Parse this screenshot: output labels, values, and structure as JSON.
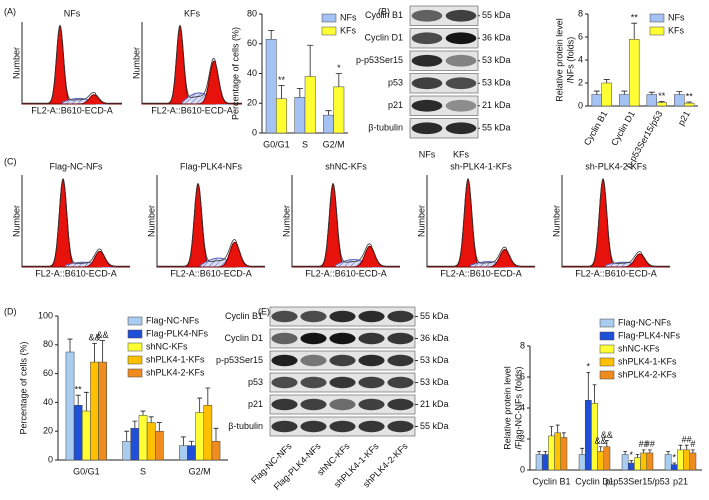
{
  "panel_labels": [
    "(A)",
    "(B)",
    "(C)",
    "(D)",
    "(E)"
  ],
  "histograms": {
    "titles": [
      "NFs",
      "KFs",
      "Flag-NC-NFs",
      "Flag-PLK4-NFs",
      "shNC-KFs",
      "sh-PLK4-1-KFs",
      "sh-PLK4-2-KFs"
    ],
    "x_label": "FL2-A::B610-ECD-A",
    "y_label": "Number"
  },
  "blots": [
    {
      "rows": [
        "Cyclin B1",
        "Cyclin D1",
        "p-p53Ser15",
        "p53",
        "p21",
        "β-tubulin"
      ],
      "sizes": [
        "55 kDa",
        "36 kDa",
        "53 kDa",
        "53 kDa",
        "21 kDa",
        "55 kDa"
      ],
      "lanes": [
        "NFs",
        "KFs"
      ]
    },
    {
      "rows": [
        "Cyclin B1",
        "Cyclin D1",
        "p-p53Ser15",
        "p53",
        "p21",
        "β-tubulin"
      ],
      "sizes": [
        "55 kDa",
        "36 kDa",
        "53 kDa",
        "53 kDa",
        "21 kDa",
        "55 kDa"
      ],
      "lanes": [
        "Flag-NC-NFs",
        "Flag-PLK4-NFs",
        "shNC-KFs",
        "shPLK4-1-KFs",
        "shPLK4-2-KFs"
      ]
    }
  ],
  "chart_data": [
    {
      "type": "bar",
      "y_label": [
        "Percentage of cells (%)"
      ],
      "categories": [
        "G0/G1",
        "S",
        "G2/M"
      ],
      "series": [
        {
          "name": "NFs",
          "color": "#a4c2f4",
          "values": [
            63,
            24,
            12
          ],
          "errors": [
            6,
            6,
            3
          ]
        },
        {
          "name": "KFs",
          "color": "#ffff33",
          "values": [
            23,
            38,
            31
          ],
          "errors": [
            9,
            21,
            9
          ],
          "significance": [
            "**",
            null,
            "*"
          ]
        }
      ],
      "ylim": [
        0,
        80
      ],
      "yticks": [
        0,
        20,
        40,
        60,
        80
      ],
      "legend": "upper right"
    },
    {
      "type": "bar",
      "y_label": [
        "Relative protein level",
        "/NFs (folds)"
      ],
      "categories": [
        "Cyclin B1",
        "Cyclin D1",
        "p-p53Ser15/p53",
        "p21"
      ],
      "series": [
        {
          "name": "NFs",
          "color": "#a4c2f4",
          "values": [
            1,
            1,
            1,
            1
          ],
          "errors": [
            0.3,
            0.3,
            0.2,
            0.25
          ]
        },
        {
          "name": "KFs",
          "color": "#ffff33",
          "values": [
            2,
            5.8,
            0.3,
            0.25
          ],
          "errors": [
            0.3,
            1.4,
            0.1,
            0.1
          ],
          "significance": [
            null,
            "**",
            "**",
            "**"
          ]
        }
      ],
      "ylim": [
        0,
        8
      ],
      "yticks": [
        0,
        2,
        4,
        6,
        8
      ],
      "legend": "upper right"
    },
    {
      "type": "bar",
      "y_label": [
        "Percentage of cells (%)"
      ],
      "categories": [
        "G0/G1",
        "S",
        "G2/M"
      ],
      "series": [
        {
          "name": "Flag-NC-NFs",
          "color": "#a8cdf0",
          "values": [
            75,
            13,
            10
          ],
          "errors": [
            9,
            7,
            6
          ]
        },
        {
          "name": "Flag-PLK4-NFs",
          "color": "#1f4fd8",
          "values": [
            38,
            22,
            10
          ],
          "errors": [
            7,
            5,
            3
          ],
          "significance": [
            "**",
            null,
            null
          ]
        },
        {
          "name": "shNC-KFs",
          "color": "#ffff33",
          "values": [
            34,
            31,
            33
          ],
          "errors": [
            13,
            3,
            10
          ]
        },
        {
          "name": "shPLK4-1-KFs",
          "color": "#ffc000",
          "values": [
            68,
            26,
            38
          ],
          "errors": [
            13,
            4,
            12
          ],
          "significance": [
            "&&",
            null,
            null
          ]
        },
        {
          "name": "shPLK4-2-KFs",
          "color": "#f08c1e",
          "values": [
            68,
            20,
            13
          ],
          "errors": [
            15,
            6,
            9
          ],
          "significance": [
            "&&",
            null,
            null
          ]
        }
      ],
      "ylim": [
        0,
        100
      ],
      "yticks": [
        0,
        20,
        40,
        60,
        80,
        100
      ],
      "legend": "upper right"
    },
    {
      "type": "bar",
      "y_label": [
        "Relative protein level",
        "/Flag-NC-NFs (folds)"
      ],
      "categories": [
        "Cyclin B1",
        "Cyclin D1",
        "p-p53Ser15/p53",
        "p21"
      ],
      "series": [
        {
          "name": "Flag-NC-NFs",
          "color": "#a8cdf0",
          "values": [
            1,
            1,
            1,
            1
          ],
          "errors": [
            0.2,
            0.4,
            0.2,
            0.2
          ]
        },
        {
          "name": "Flag-PLK4-NFs",
          "color": "#1f4fd8",
          "values": [
            1,
            4.5,
            0.45,
            0.35
          ],
          "errors": [
            0.2,
            1.8,
            0.15,
            0.1
          ],
          "significance": [
            null,
            "*",
            "*",
            "*"
          ]
        },
        {
          "name": "shNC-KFs",
          "color": "#ffff33",
          "values": [
            2.2,
            4.3,
            0.8,
            1.3
          ],
          "errors": [
            0.6,
            1.2,
            0.2,
            0.3
          ]
        },
        {
          "name": "shPLK4-1-KFs",
          "color": "#ffc000",
          "values": [
            2.4,
            1.2,
            1.1,
            1.3
          ],
          "errors": [
            0.5,
            0.3,
            0.2,
            0.3
          ],
          "significance": [
            null,
            "&&",
            "##",
            "##"
          ]
        },
        {
          "name": "shPLK4-2-KFs",
          "color": "#f08c1e",
          "values": [
            2.1,
            1.5,
            1.1,
            1.1
          ],
          "errors": [
            0.3,
            0.4,
            0.2,
            0.2
          ],
          "significance": [
            null,
            "&&",
            "##",
            "#"
          ]
        }
      ],
      "ylim": [
        0,
        8
      ],
      "yticks": [
        0,
        2,
        4,
        6,
        8
      ],
      "legend": "upper right"
    }
  ]
}
